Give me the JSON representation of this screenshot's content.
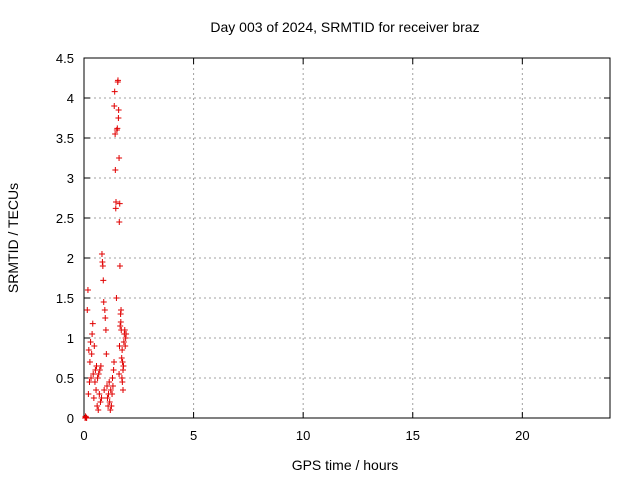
{
  "chart_data": {
    "type": "scatter",
    "title": "Day 003 of 2024, SRMTID for receiver braz",
    "xlabel": "GPS time / hours",
    "ylabel": "SRMTID / TECUs",
    "xlim": [
      0,
      24
    ],
    "ylim": [
      0,
      4.5
    ],
    "xticks": [
      "0",
      "5",
      "10",
      "15",
      "20"
    ],
    "yticks": [
      "0",
      "0.5",
      "1",
      "1.5",
      "2",
      "2.5",
      "3",
      "3.5",
      "4",
      "4.5"
    ],
    "grid": true,
    "legend": "none",
    "marker": "plus",
    "series_color": "#e00000",
    "points": [
      [
        0.05,
        0.0
      ],
      [
        0.07,
        0.02
      ],
      [
        0.09,
        0.01
      ],
      [
        0.12,
        0.0
      ],
      [
        0.15,
        1.35
      ],
      [
        0.18,
        1.6
      ],
      [
        0.2,
        0.3
      ],
      [
        0.22,
        0.85
      ],
      [
        0.25,
        0.45
      ],
      [
        0.27,
        0.7
      ],
      [
        0.3,
        0.95
      ],
      [
        0.32,
        0.5
      ],
      [
        0.35,
        0.8
      ],
      [
        0.37,
        1.05
      ],
      [
        0.4,
        1.18
      ],
      [
        0.42,
        0.55
      ],
      [
        0.45,
        0.25
      ],
      [
        0.47,
        0.9
      ],
      [
        0.5,
        0.45
      ],
      [
        0.52,
        0.6
      ],
      [
        0.55,
        0.35
      ],
      [
        0.57,
        0.65
      ],
      [
        0.6,
        0.15
      ],
      [
        0.62,
        0.5
      ],
      [
        0.65,
        0.1
      ],
      [
        0.67,
        0.55
      ],
      [
        0.7,
        0.3
      ],
      [
        0.72,
        0.6
      ],
      [
        0.75,
        0.2
      ],
      [
        0.77,
        0.65
      ],
      [
        0.8,
        0.25
      ],
      [
        0.82,
        2.05
      ],
      [
        0.84,
        1.95
      ],
      [
        0.86,
        1.9
      ],
      [
        0.88,
        1.72
      ],
      [
        0.9,
        1.45
      ],
      [
        0.92,
        0.35
      ],
      [
        0.95,
        1.35
      ],
      [
        0.97,
        1.25
      ],
      [
        1.0,
        1.1
      ],
      [
        1.02,
        0.8
      ],
      [
        1.05,
        0.4
      ],
      [
        1.07,
        0.25
      ],
      [
        1.1,
        0.15
      ],
      [
        1.12,
        0.3
      ],
      [
        1.15,
        0.45
      ],
      [
        1.17,
        0.2
      ],
      [
        1.2,
        0.1
      ],
      [
        1.22,
        0.35
      ],
      [
        1.25,
        0.15
      ],
      [
        1.28,
        0.3
      ],
      [
        1.3,
        0.5
      ],
      [
        1.32,
        0.4
      ],
      [
        1.35,
        0.6
      ],
      [
        1.37,
        0.7
      ],
      [
        1.38,
        3.9
      ],
      [
        1.4,
        4.08
      ],
      [
        1.42,
        3.55
      ],
      [
        1.43,
        3.1
      ],
      [
        1.45,
        2.62
      ],
      [
        1.46,
        2.7
      ],
      [
        1.48,
        1.5
      ],
      [
        1.5,
        3.6
      ],
      [
        1.52,
        3.62
      ],
      [
        1.54,
        4.2
      ],
      [
        1.55,
        4.22
      ],
      [
        1.57,
        3.75
      ],
      [
        1.58,
        3.85
      ],
      [
        1.6,
        3.25
      ],
      [
        1.61,
        2.45
      ],
      [
        1.63,
        2.68
      ],
      [
        1.64,
        1.9
      ],
      [
        1.65,
        1.15
      ],
      [
        1.67,
        1.3
      ],
      [
        1.69,
        1.35
      ],
      [
        1.7,
        1.1
      ],
      [
        1.72,
        0.75
      ],
      [
        1.74,
        0.85
      ],
      [
        1.76,
        0.7
      ],
      [
        1.78,
        0.6
      ],
      [
        1.8,
        0.65
      ],
      [
        1.82,
        0.95
      ],
      [
        1.84,
        1.05
      ],
      [
        1.86,
        1.1
      ],
      [
        1.88,
        0.9
      ],
      [
        1.9,
        1.0
      ],
      [
        1.92,
        1.05
      ],
      [
        1.75,
        0.45
      ],
      [
        1.78,
        0.35
      ],
      [
        1.6,
        0.55
      ],
      [
        1.62,
        0.9
      ],
      [
        1.68,
        1.2
      ],
      [
        1.73,
        0.5
      ]
    ]
  }
}
